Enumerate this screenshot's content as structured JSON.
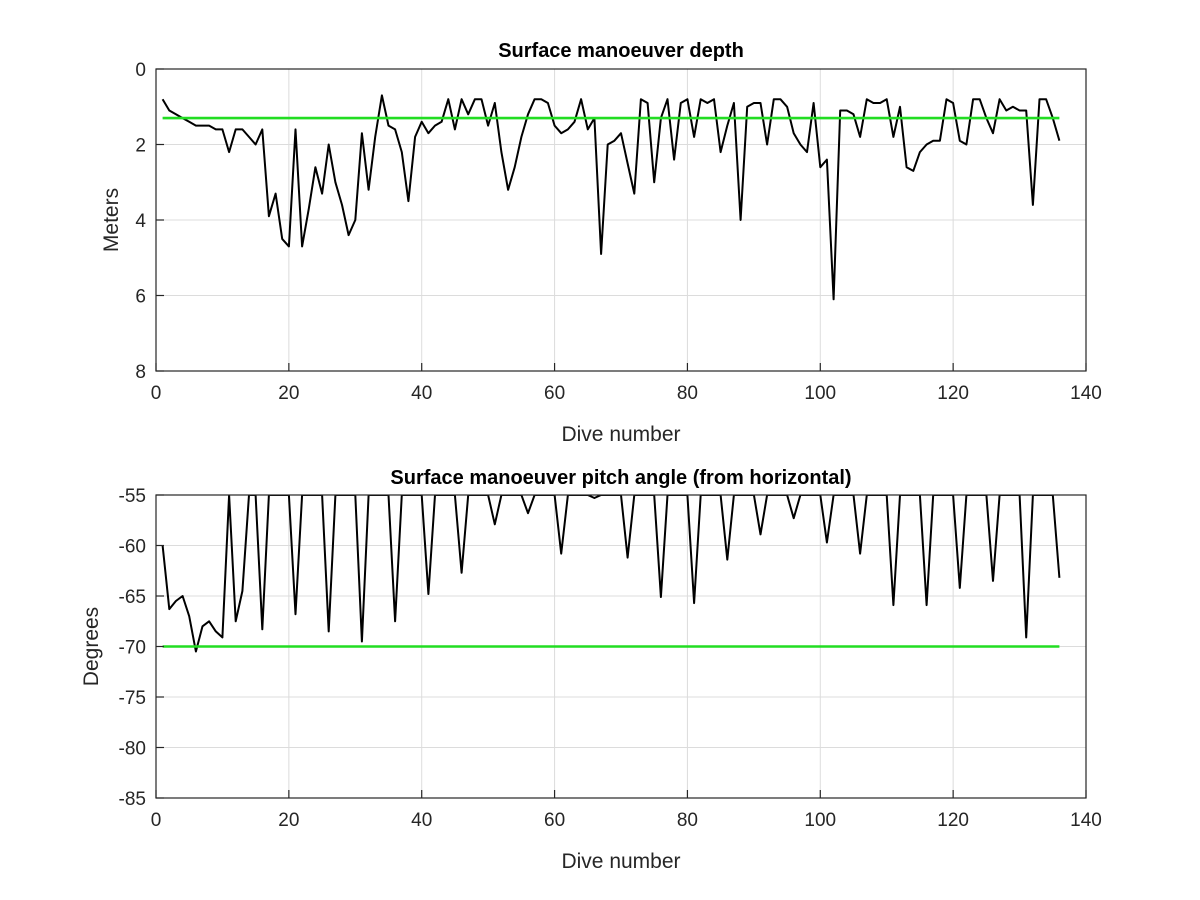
{
  "chart_data": [
    {
      "type": "line",
      "title": "Surface manoeuver depth",
      "xlabel": "Dive number",
      "ylabel": "Meters",
      "xlim": [
        0,
        140
      ],
      "ylim": [
        0,
        8
      ],
      "y_reversed": true,
      "grid": true,
      "xticks": [
        "0",
        "20",
        "40",
        "60",
        "80",
        "100",
        "120",
        "140"
      ],
      "yticks": [
        "0",
        "2",
        "4",
        "6",
        "8"
      ],
      "series": [
        {
          "color": "#000000",
          "x": [
            1,
            2,
            3,
            4,
            5,
            6,
            7,
            8,
            9,
            10,
            11,
            12,
            13,
            14,
            15,
            16,
            17,
            18,
            19,
            20,
            21,
            22,
            23,
            24,
            25,
            26,
            27,
            28,
            29,
            30,
            31,
            32,
            33,
            34,
            35,
            36,
            37,
            38,
            39,
            40,
            41,
            42,
            43,
            44,
            45,
            46,
            47,
            48,
            49,
            50,
            51,
            52,
            53,
            54,
            55,
            56,
            57,
            58,
            59,
            60,
            61,
            62,
            63,
            64,
            65,
            66,
            67,
            68,
            69,
            70,
            71,
            72,
            73,
            74,
            75,
            76,
            77,
            78,
            79,
            80,
            81,
            82,
            83,
            84,
            85,
            86,
            87,
            88,
            89,
            90,
            91,
            92,
            93,
            94,
            95,
            96,
            97,
            98,
            99,
            100,
            101,
            102,
            103,
            104,
            105,
            106,
            107,
            108,
            109,
            110,
            111,
            112,
            113,
            114,
            115,
            116,
            117,
            118,
            119,
            120,
            121,
            122,
            123,
            124,
            125,
            126,
            127,
            128,
            129,
            130,
            131,
            132,
            133,
            134,
            135,
            136
          ],
          "y": [
            0.8,
            1.1,
            1.2,
            1.3,
            1.4,
            1.5,
            1.5,
            1.5,
            1.6,
            1.6,
            2.2,
            1.6,
            1.6,
            1.8,
            2.0,
            1.6,
            3.9,
            3.3,
            4.5,
            4.7,
            1.6,
            4.7,
            3.7,
            2.6,
            3.3,
            2.0,
            3.0,
            3.6,
            4.4,
            4.0,
            1.7,
            3.2,
            1.8,
            0.7,
            1.5,
            1.6,
            2.2,
            3.5,
            1.8,
            1.4,
            1.7,
            1.5,
            1.4,
            0.8,
            1.6,
            0.8,
            1.2,
            0.8,
            0.8,
            1.5,
            0.9,
            2.2,
            3.2,
            2.6,
            1.8,
            1.2,
            0.8,
            0.8,
            0.9,
            1.5,
            1.7,
            1.6,
            1.4,
            0.8,
            1.6,
            1.3,
            4.9,
            2.0,
            1.9,
            1.7,
            2.5,
            3.3,
            0.8,
            0.9,
            3.0,
            1.3,
            0.8,
            2.4,
            0.9,
            0.8,
            1.8,
            0.8,
            0.9,
            0.8,
            2.2,
            1.5,
            0.9,
            4.0,
            1.0,
            0.9,
            0.9,
            2.0,
            0.8,
            0.8,
            1.0,
            1.7,
            2.0,
            2.2,
            0.9,
            2.6,
            2.4,
            6.1,
            1.1,
            1.1,
            1.2,
            1.8,
            0.8,
            0.9,
            0.9,
            0.8,
            1.8,
            1.0,
            2.6,
            2.7,
            2.2,
            2.0,
            1.9,
            1.9,
            0.8,
            0.9,
            1.9,
            2.0,
            0.8,
            0.8,
            1.3,
            1.7,
            0.8,
            1.1,
            1.0,
            1.1,
            1.1,
            3.6,
            0.8,
            0.8,
            1.3,
            1.9
          ]
        },
        {
          "color": "#22dd22",
          "x": [
            1,
            136
          ],
          "y": [
            1.3,
            1.3
          ]
        }
      ]
    },
    {
      "type": "line",
      "title": "Surface manoeuver pitch angle (from horizontal)",
      "xlabel": "Dive number",
      "ylabel": "Degrees",
      "xlim": [
        0,
        140
      ],
      "ylim": [
        -85,
        -55
      ],
      "grid": true,
      "xticks": [
        "0",
        "20",
        "40",
        "60",
        "80",
        "100",
        "120",
        "140"
      ],
      "yticks": [
        "-55",
        "-60",
        "-65",
        "-70",
        "-75",
        "-80",
        "-85"
      ],
      "series": [
        {
          "color": "#000000",
          "x": [
            1,
            2,
            3,
            4,
            5,
            6,
            7,
            8,
            9,
            10,
            11,
            12,
            13,
            14,
            15,
            16,
            17,
            18,
            19,
            20,
            21,
            22,
            23,
            24,
            25,
            26,
            27,
            28,
            29,
            30,
            31,
            32,
            33,
            34,
            35,
            36,
            37,
            38,
            39,
            40,
            41,
            42,
            43,
            44,
            45,
            46,
            47,
            48,
            49,
            50,
            51,
            52,
            53,
            54,
            55,
            56,
            57,
            58,
            59,
            60,
            61,
            62,
            63,
            64,
            65,
            66,
            67,
            68,
            69,
            70,
            71,
            72,
            73,
            74,
            75,
            76,
            77,
            78,
            79,
            80,
            81,
            82,
            83,
            84,
            85,
            86,
            87,
            88,
            89,
            90,
            91,
            92,
            93,
            94,
            95,
            96,
            97,
            98,
            99,
            100,
            101,
            102,
            103,
            104,
            105,
            106,
            107,
            108,
            109,
            110,
            111,
            112,
            113,
            114,
            115,
            116,
            117,
            118,
            119,
            120,
            121,
            122,
            123,
            124,
            125,
            126,
            127,
            128,
            129,
            130,
            131,
            132,
            133,
            134,
            135,
            136
          ],
          "y": [
            -60,
            -66.3,
            -65.5,
            -65,
            -67,
            -70.5,
            -68,
            -67.5,
            -68.5,
            -69.1,
            -55,
            -67.5,
            -64.5,
            -55,
            -55,
            -68.3,
            -55,
            -55,
            -55,
            -55,
            -66.8,
            -55,
            -55,
            -55,
            -55,
            -68.5,
            -55,
            -55,
            -55,
            -55,
            -69.5,
            -55,
            -55,
            -55,
            -55,
            -67.5,
            -55,
            -55,
            -55,
            -55,
            -64.8,
            -55,
            -55,
            -55,
            -55,
            -62.7,
            -55,
            -55,
            -55,
            -55,
            -57.9,
            -55,
            -55,
            -55,
            -55,
            -56.8,
            -55,
            -55,
            -55,
            -55,
            -60.8,
            -55,
            -55,
            -55,
            -55,
            -55.3,
            -55,
            -55,
            -55,
            -55,
            -61.2,
            -55,
            -55,
            -55,
            -55,
            -65.1,
            -55,
            -55,
            -55,
            -55,
            -65.7,
            -55,
            -55,
            -55,
            -55,
            -61.4,
            -55,
            -55,
            -55,
            -55,
            -58.9,
            -55,
            -55,
            -55,
            -55,
            -57.3,
            -55,
            -55,
            -55,
            -55,
            -59.7,
            -55,
            -55,
            -55,
            -55,
            -60.8,
            -55,
            -55,
            -55,
            -55,
            -65.9,
            -55,
            -55,
            -55,
            -55,
            -65.9,
            -55,
            -55,
            -55,
            -55,
            -64.2,
            -55,
            -55,
            -55,
            -55,
            -63.5,
            -55,
            -55,
            -55,
            -55,
            -69.1,
            -55,
            -55,
            -55,
            -55,
            -63.2
          ]
        },
        {
          "color": "#22dd22",
          "x": [
            1,
            136
          ],
          "y": [
            -70,
            -70
          ]
        }
      ]
    }
  ]
}
